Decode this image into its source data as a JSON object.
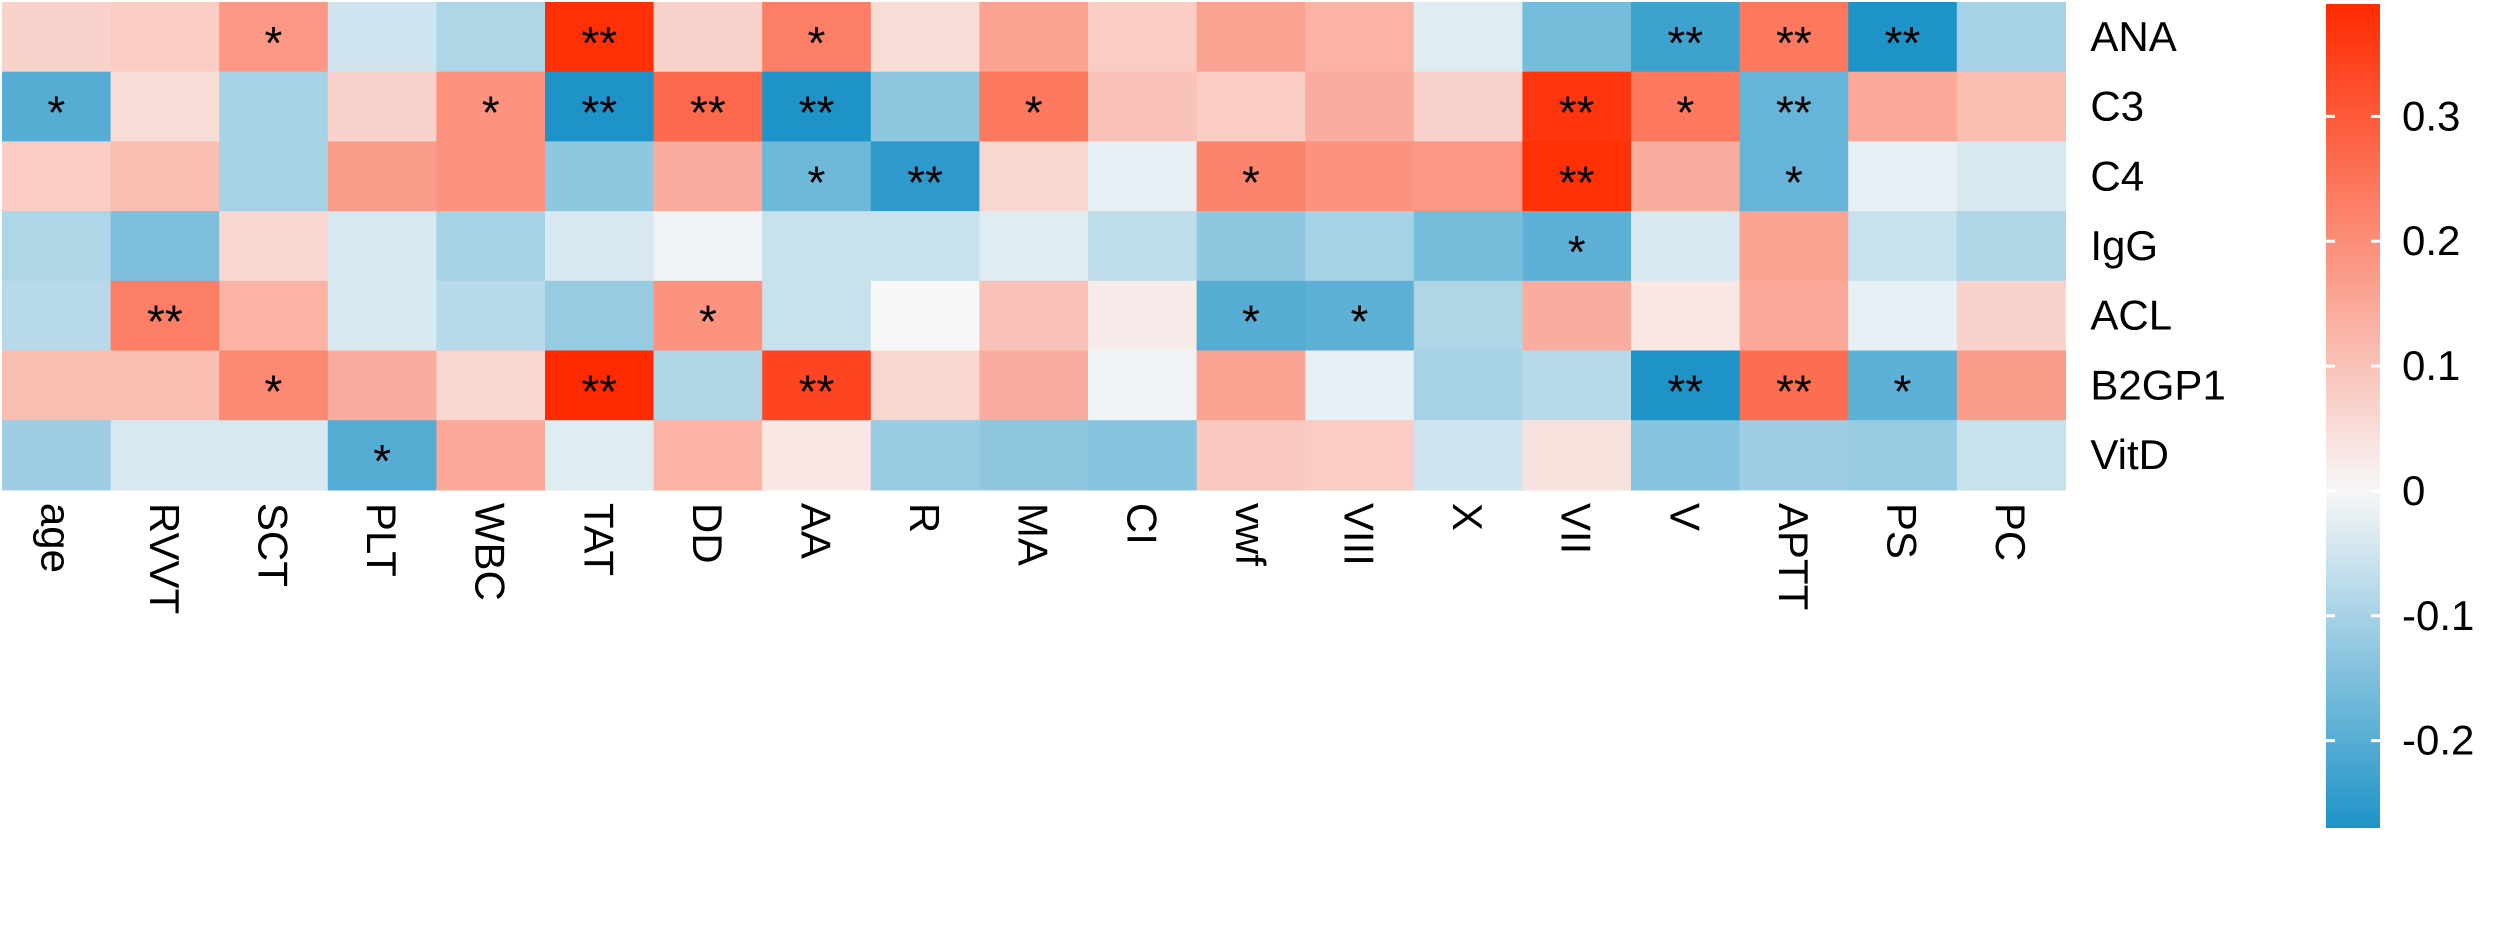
{
  "chart_data": {
    "type": "heatmap",
    "title": "",
    "xlabel": "",
    "ylabel": "",
    "columns": [
      "age",
      "RVVT",
      "SCT",
      "PLT",
      "WBC",
      "TAT",
      "DD",
      "AA",
      "R",
      "MA",
      "CI",
      "vwf",
      "VIII",
      "X",
      "VII",
      "V",
      "APTT",
      "PS",
      "PC"
    ],
    "rows": [
      "ANA",
      "C3",
      "C4",
      "IgG",
      "ACL",
      "B2GP1",
      "VitD"
    ],
    "values": [
      [
        0.07,
        0.08,
        0.18,
        -0.05,
        -0.09,
        0.38,
        0.07,
        0.23,
        0.05,
        0.16,
        0.08,
        0.16,
        0.13,
        -0.03,
        -0.16,
        -0.23,
        0.24,
        -0.27,
        -0.1
      ],
      [
        -0.2,
        0.05,
        -0.1,
        0.07,
        0.19,
        -0.27,
        0.27,
        -0.27,
        -0.13,
        0.24,
        0.1,
        0.08,
        0.14,
        0.07,
        0.37,
        0.24,
        -0.18,
        0.15,
        0.11
      ],
      [
        0.08,
        0.11,
        -0.1,
        0.17,
        0.19,
        -0.13,
        0.14,
        -0.17,
        -0.25,
        0.06,
        -0.02,
        0.22,
        0.19,
        0.18,
        0.38,
        0.14,
        -0.18,
        -0.02,
        -0.04
      ],
      [
        -0.09,
        -0.15,
        0.06,
        -0.04,
        -0.1,
        -0.04,
        -0.01,
        -0.06,
        -0.06,
        -0.03,
        -0.07,
        -0.13,
        -0.1,
        -0.16,
        -0.19,
        -0.04,
        0.16,
        -0.06,
        -0.09
      ],
      [
        -0.08,
        0.23,
        0.13,
        -0.04,
        -0.08,
        -0.12,
        0.19,
        -0.06,
        0.0,
        0.1,
        0.02,
        -0.2,
        -0.19,
        -0.09,
        0.14,
        0.03,
        0.15,
        -0.02,
        0.07
      ],
      [
        0.11,
        0.11,
        0.21,
        0.14,
        0.06,
        0.42,
        -0.09,
        0.34,
        0.06,
        0.14,
        -0.01,
        0.16,
        -0.02,
        -0.1,
        -0.08,
        -0.28,
        0.26,
        -0.19,
        0.17
      ],
      [
        -0.11,
        -0.04,
        -0.04,
        -0.2,
        0.15,
        -0.03,
        0.13,
        0.03,
        -0.12,
        -0.13,
        -0.14,
        0.09,
        0.08,
        -0.05,
        0.04,
        -0.14,
        -0.11,
        -0.12,
        -0.06
      ]
    ],
    "significance": [
      [
        "",
        "",
        "*",
        "",
        "",
        "**",
        "",
        "*",
        "",
        "",
        "",
        "",
        "",
        "",
        "",
        "**",
        "**",
        "**",
        ""
      ],
      [
        "*",
        "",
        "",
        "",
        "*",
        "**",
        "**",
        "**",
        "",
        "*",
        "",
        "",
        "",
        "",
        "**",
        "*",
        "**",
        "",
        ""
      ],
      [
        "",
        "",
        "",
        "",
        "",
        "",
        "",
        "*",
        "**",
        "",
        "",
        "*",
        "",
        "",
        "**",
        "",
        "*",
        "",
        ""
      ],
      [
        "",
        "",
        "",
        "",
        "",
        "",
        "",
        "",
        "",
        "",
        "",
        "",
        "",
        "",
        "*",
        "",
        "",
        "",
        ""
      ],
      [
        "",
        "**",
        "",
        "",
        "",
        "",
        "*",
        "",
        "",
        "",
        "",
        "*",
        "*",
        "",
        "",
        "",
        "",
        "",
        ""
      ],
      [
        "",
        "",
        "*",
        "",
        "",
        "**",
        "",
        "**",
        "",
        "",
        "",
        "",
        "",
        "",
        "",
        "**",
        "**",
        "*",
        ""
      ],
      [
        "",
        "",
        "",
        "*",
        "",
        "",
        "",
        "",
        "",
        "",
        "",
        "",
        "",
        "",
        "",
        "",
        "",
        "",
        ""
      ]
    ],
    "vmin": -0.27,
    "vmax": 0.39,
    "colors": {
      "low": "#1E93C8",
      "mid": "#F7F7F7",
      "high": "#FF2A00"
    },
    "legend": {
      "position": "right",
      "ticks": [
        0.3,
        0.2,
        0.1,
        0,
        -0.1,
        -0.2
      ],
      "tick_labels": [
        "0.3",
        "0.2",
        "0.1",
        "0",
        "-0.1",
        "-0.2"
      ]
    }
  }
}
